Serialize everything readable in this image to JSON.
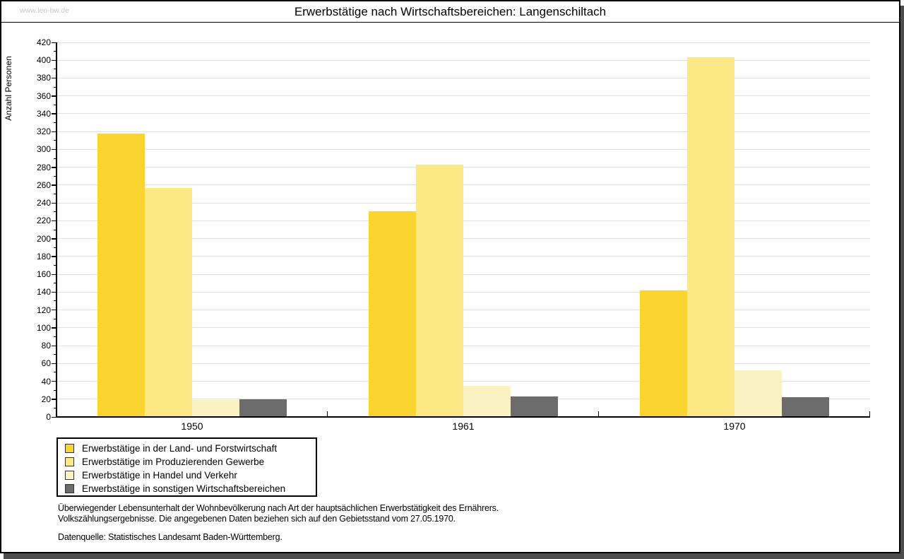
{
  "watermark": "www.leo-bw.de",
  "title": "Erwerbstätige nach Wirtschaftsbereichen: Langenschiltach",
  "chart_data": {
    "type": "bar",
    "title": "Erwerbstätige nach Wirtschaftsbereichen: Langenschiltach",
    "xlabel": "",
    "ylabel": "Anzahl Personen",
    "categories": [
      "1950",
      "1961",
      "1970"
    ],
    "series": [
      {
        "name": "Erwerbstätige in der Land- und Forstwirtschaft",
        "color": "#FCD42F",
        "values": [
          318,
          231,
          142
        ]
      },
      {
        "name": "Erwerbstätige im Produzierenden Gewerbe",
        "color": "#FCE885",
        "values": [
          257,
          283,
          403
        ]
      },
      {
        "name": "Erwerbstätige in Handel und Verkehr",
        "color": "#FBF2C4",
        "values": [
          19,
          35,
          52
        ]
      },
      {
        "name": "Erwerbstätige in sonstigen Wirtschaftsbereichen",
        "color": "#6C6C6C",
        "values": [
          20,
          23,
          22
        ]
      }
    ],
    "ylim": [
      0,
      420
    ],
    "ytick_step": 20,
    "yminor_step": 10,
    "grid": true,
    "legend_position": "bottom-left"
  },
  "footnotes": {
    "line1": "Überwiegender Lebensunterhalt der Wohnbevölkerung nach Art der hauptsächlichen Erwerbstätigkeit des Ernährers.",
    "line2": "Volkszählungsergebnisse. Die angegebenen Daten beziehen sich auf den Gebietsstand vom 27.05.1970.",
    "source": "Datenquelle: Statistisches Landesamt Baden-Württemberg."
  }
}
